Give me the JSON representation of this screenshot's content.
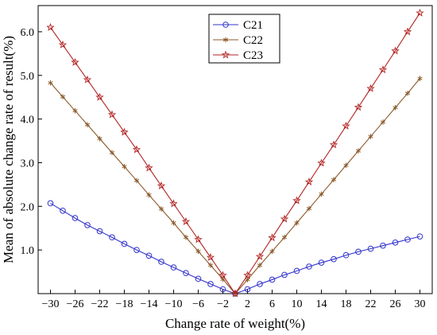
{
  "chart_data": {
    "type": "line",
    "xlabel": "Change rate of weight(%)",
    "ylabel": "Mean of absolute change rate of result(%)",
    "xlim": [
      -32,
      32
    ],
    "ylim": [
      0,
      6.6
    ],
    "xticks": [
      -30,
      -26,
      -22,
      -18,
      -14,
      -10,
      -6,
      -2,
      2,
      6,
      10,
      14,
      18,
      22,
      26,
      30
    ],
    "xtick_labels": [
      "−30",
      "−26",
      "−22",
      "−18",
      "−14",
      "−10",
      "−6",
      "−2",
      "2",
      "6",
      "10",
      "14",
      "18",
      "22",
      "26",
      "30"
    ],
    "yticks": [
      1.0,
      2.0,
      3.0,
      4.0,
      5.0,
      6.0
    ],
    "ytick_labels": [
      "1.0",
      "2.0",
      "3.0",
      "4.0",
      "5.0",
      "6.0"
    ],
    "grid": false,
    "legend_position": "top-center",
    "x": [
      -30,
      -28,
      -26,
      -24,
      -22,
      -20,
      -18,
      -16,
      -14,
      -12,
      -10,
      -8,
      -6,
      -4,
      -2,
      0,
      2,
      4,
      6,
      8,
      10,
      12,
      14,
      16,
      18,
      20,
      22,
      24,
      26,
      28,
      30
    ],
    "series": [
      {
        "name": "C21",
        "color": "#3333cc",
        "marker": "circle",
        "values": [
          2.07,
          1.9,
          1.73,
          1.57,
          1.43,
          1.29,
          1.14,
          1.0,
          0.87,
          0.73,
          0.6,
          0.47,
          0.34,
          0.22,
          0.1,
          0.0,
          0.1,
          0.22,
          0.32,
          0.43,
          0.52,
          0.62,
          0.71,
          0.79,
          0.88,
          0.96,
          1.03,
          1.1,
          1.17,
          1.24,
          1.31
        ]
      },
      {
        "name": "C22",
        "color": "#8b5a2b",
        "marker": "asterisk",
        "values": [
          4.83,
          4.51,
          4.19,
          3.87,
          3.55,
          3.23,
          2.91,
          2.59,
          2.26,
          1.94,
          1.62,
          1.29,
          0.97,
          0.65,
          0.33,
          0.0,
          0.32,
          0.65,
          0.97,
          1.29,
          1.62,
          1.95,
          2.28,
          2.61,
          2.94,
          3.27,
          3.6,
          3.93,
          4.26,
          4.59,
          4.93
        ]
      },
      {
        "name": "C23",
        "color": "#b22222",
        "marker": "star",
        "values": [
          6.1,
          5.7,
          5.3,
          4.9,
          4.5,
          4.1,
          3.7,
          3.3,
          2.88,
          2.47,
          2.06,
          1.65,
          1.24,
          0.83,
          0.42,
          0.0,
          0.42,
          0.85,
          1.28,
          1.71,
          2.13,
          2.56,
          2.99,
          3.41,
          3.84,
          4.27,
          4.7,
          5.13,
          5.56,
          6.0,
          6.43
        ]
      }
    ]
  }
}
